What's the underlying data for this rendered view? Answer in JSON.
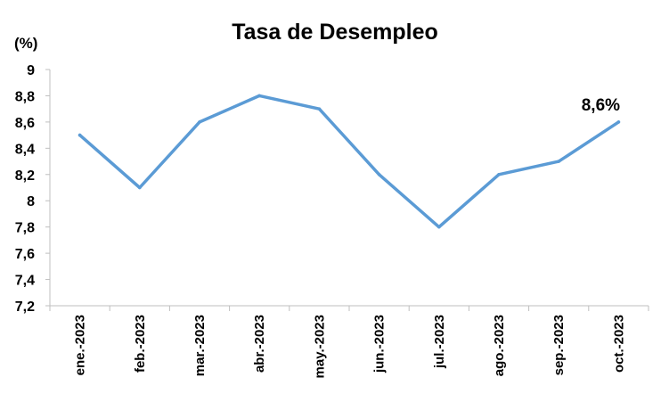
{
  "chart_data": {
    "type": "line",
    "title": "Tasa de Desempleo",
    "ylabel": "(%)",
    "xlabel": "",
    "categories": [
      "ene.-2023",
      "feb.-2023",
      "mar.-2023",
      "abr.-2023",
      "may.-2023",
      "jun.-2023",
      "jul.-2023",
      "ago.-2023",
      "sep.-2023",
      "oct.-2023"
    ],
    "series": [
      {
        "values": [
          8.5,
          8.1,
          8.6,
          8.8,
          8.7,
          8.2,
          7.8,
          8.2,
          8.3,
          8.6
        ]
      }
    ],
    "ylim": [
      7.2,
      9
    ],
    "yticks": [
      "7,2",
      "7,4",
      "7,6",
      "7,8",
      "8",
      "8,2",
      "8,4",
      "8,6",
      "8,8",
      "9"
    ],
    "grid": false,
    "legend": "none",
    "annotations": [
      {
        "category": "oct.-2023",
        "text": "8,6%"
      }
    ],
    "colors": {
      "line": "#5B9BD5",
      "axis": "#BFBFBF"
    }
  }
}
